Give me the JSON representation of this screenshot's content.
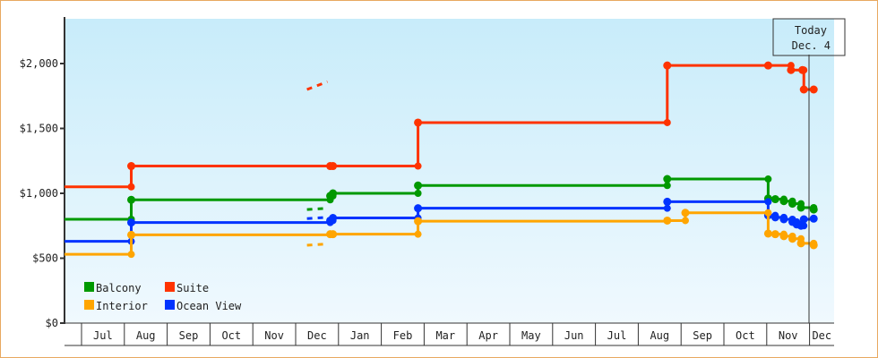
{
  "chart_data": {
    "type": "line",
    "subtype": "step",
    "x_ticks": [
      "Jul",
      "Aug",
      "Sep",
      "Oct",
      "Nov",
      "Dec",
      "Jan",
      "Feb",
      "Mar",
      "Apr",
      "May",
      "Jun",
      "Jul",
      "Aug",
      "Sep",
      "Oct",
      "Nov",
      "Dec"
    ],
    "first_month": "Jun",
    "y_ticks": [
      {
        "v": 0,
        "label": "$0"
      },
      {
        "v": 500,
        "label": "$500"
      },
      {
        "v": 1000,
        "label": "$1,000"
      },
      {
        "v": 1500,
        "label": "$1,500"
      },
      {
        "v": 2000,
        "label": "$2,000"
      }
    ],
    "ylim": [
      0,
      2340
    ],
    "grid": false,
    "legend_position": "bottom-left",
    "today": {
      "line1": "Today",
      "line2": "Dec. 4",
      "date": "Dec 4"
    },
    "series": [
      {
        "name": "Suite",
        "color": "#ff3300",
        "points": [
          [
            "Jun 18",
            1050
          ],
          [
            "Aug 6",
            1210
          ],
          [
            "Dec 26",
            1210
          ],
          [
            "Dec 28",
            1210
          ],
          [
            "Feb 25",
            1545
          ],
          [
            "Aug 22",
            1985
          ],
          [
            "Nov 2",
            1985
          ],
          [
            "Nov 18",
            1950
          ],
          [
            "Nov 26",
            1950
          ],
          [
            "Nov 27",
            1800
          ],
          [
            "Dec 4",
            1800
          ]
        ],
        "forecast": [
          [
            "Dec 4",
            1800
          ],
          [
            "Dec 24",
            1860
          ]
        ]
      },
      {
        "name": "Balcony",
        "color": "#009900",
        "points": [
          [
            "Jun 18",
            800
          ],
          [
            "Aug 6",
            950
          ],
          [
            "Dec 26",
            980
          ],
          [
            "Dec 28",
            1000
          ],
          [
            "Feb 25",
            1060
          ],
          [
            "Aug 22",
            1110
          ],
          [
            "Nov 2",
            960
          ],
          [
            "Nov 7",
            955
          ],
          [
            "Nov 13",
            940
          ],
          [
            "Nov 19",
            920
          ],
          [
            "Nov 25",
            890
          ],
          [
            "Dec 4",
            875
          ]
        ],
        "forecast": [
          [
            "Dec 4",
            875
          ],
          [
            "Dec 24",
            885
          ]
        ]
      },
      {
        "name": "Ocean View",
        "color": "#0033ff",
        "points": [
          [
            "Jun 18",
            630
          ],
          [
            "Aug 6",
            775
          ],
          [
            "Dec 26",
            790
          ],
          [
            "Dec 28",
            810
          ],
          [
            "Feb 25",
            885
          ],
          [
            "Aug 22",
            935
          ],
          [
            "Nov 2",
            830
          ],
          [
            "Nov 7",
            815
          ],
          [
            "Nov 13",
            800
          ],
          [
            "Nov 19",
            780
          ],
          [
            "Nov 22",
            760
          ],
          [
            "Nov 25",
            750
          ],
          [
            "Nov 27",
            800
          ],
          [
            "Dec 4",
            805
          ]
        ],
        "forecast": [
          [
            "Dec 4",
            805
          ],
          [
            "Dec 24",
            815
          ]
        ]
      },
      {
        "name": "Interior",
        "color": "#ffa500",
        "points": [
          [
            "Jun 18",
            530
          ],
          [
            "Aug 6",
            680
          ],
          [
            "Dec 26",
            685
          ],
          [
            "Dec 28",
            685
          ],
          [
            "Feb 25",
            785
          ],
          [
            "Aug 22",
            790
          ],
          [
            "Sep 4",
            850
          ],
          [
            "Nov 2",
            690
          ],
          [
            "Nov 7",
            685
          ],
          [
            "Nov 13",
            670
          ],
          [
            "Nov 19",
            650
          ],
          [
            "Nov 25",
            615
          ],
          [
            "Dec 4",
            600
          ]
        ],
        "forecast": [
          [
            "Dec 4",
            600
          ],
          [
            "Dec 24",
            610
          ]
        ]
      }
    ],
    "legend": [
      "Balcony",
      "Suite",
      "Interior",
      "Ocean View"
    ]
  }
}
